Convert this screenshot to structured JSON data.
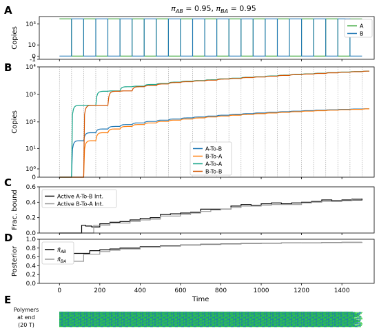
{
  "figure_title": "π_AB = 0.95, π_BA = 0.95",
  "chart_data": [
    {
      "panel_label": "A",
      "type": "line",
      "ylabel": "Copies",
      "xlim": [
        -100,
        1560
      ],
      "yscale": "symlog",
      "ylim": [
        -1,
        5000
      ],
      "y_ticks": [
        {
          "v": -1,
          "label": "-1"
        },
        {
          "v": 0,
          "label": "0"
        },
        {
          "v": 10,
          "label": "10"
        },
        {
          "v": 1000,
          "label": "10³"
        }
      ],
      "x_tick_labels_shown": false,
      "legend_position": "right",
      "series": [
        {
          "name": "A",
          "color": "#2ca02c",
          "alternating_square_wave": true,
          "start_high": true,
          "period": 60,
          "levels": [
            0,
            3000
          ]
        },
        {
          "name": "B",
          "color": "#1f77b4",
          "alternating_square_wave": true,
          "start_high": false,
          "period": 60,
          "levels": [
            0,
            3000
          ]
        }
      ]
    },
    {
      "panel_label": "B",
      "type": "line",
      "ylabel": "Copies",
      "xlim": [
        -100,
        1560
      ],
      "yscale": "symlog",
      "ylim": [
        0,
        10000
      ],
      "y_ticks": [
        {
          "v": 0,
          "label": "0"
        },
        {
          "v": 1,
          "label": "10⁰"
        },
        {
          "v": 10,
          "label": "10¹"
        },
        {
          "v": 100,
          "label": "10²"
        },
        {
          "v": 1000,
          "label": "10³"
        },
        {
          "v": 10000,
          "label": "10⁴"
        }
      ],
      "vertical_gridlines_every": 60,
      "legend_position": "lower-center",
      "series": [
        {
          "name": "A-To-B",
          "color": "#1f77b4",
          "x": [
            0,
            60,
            120,
            180,
            240,
            300,
            360,
            420,
            480,
            540,
            600,
            660,
            720,
            780,
            840,
            900,
            960,
            1020,
            1080,
            1140,
            1200,
            1260,
            1320,
            1380,
            1440,
            1500
          ],
          "y": [
            0,
            20,
            40,
            55,
            68,
            80,
            92,
            104,
            116,
            128,
            140,
            152,
            164,
            176,
            188,
            200,
            212,
            224,
            236,
            248,
            258,
            268,
            278,
            288,
            296,
            300
          ]
        },
        {
          "name": "B-To-A",
          "color": "#ff7f0e",
          "x": [
            0,
            60,
            120,
            180,
            240,
            300,
            360,
            420,
            480,
            540,
            600,
            660,
            720,
            780,
            840,
            900,
            960,
            1020,
            1080,
            1140,
            1200,
            1260,
            1320,
            1380,
            1440,
            1500
          ],
          "y": [
            0,
            0,
            20,
            40,
            55,
            68,
            80,
            92,
            104,
            116,
            128,
            140,
            152,
            164,
            176,
            188,
            200,
            212,
            224,
            236,
            248,
            258,
            268,
            278,
            288,
            300
          ]
        },
        {
          "name": "A-To-A",
          "color": "#17a589",
          "x": [
            0,
            60,
            120,
            180,
            240,
            300,
            360,
            420,
            480,
            540,
            600,
            660,
            720,
            780,
            840,
            900,
            960,
            1020,
            1080,
            1140,
            1200,
            1260,
            1320,
            1380,
            1440,
            1500
          ],
          "y": [
            0,
            400,
            400,
            1300,
            1350,
            1900,
            2000,
            2300,
            2500,
            2800,
            3000,
            3200,
            3400,
            3700,
            3900,
            4200,
            4400,
            4700,
            5000,
            5300,
            5600,
            5900,
            6200,
            6500,
            6800,
            7000
          ]
        },
        {
          "name": "B-To-B",
          "color": "#d35400",
          "x": [
            0,
            60,
            120,
            180,
            240,
            300,
            360,
            420,
            480,
            540,
            600,
            660,
            720,
            780,
            840,
            900,
            960,
            1020,
            1080,
            1140,
            1200,
            1260,
            1320,
            1380,
            1440,
            1500
          ],
          "y": [
            0,
            0,
            400,
            400,
            1300,
            1350,
            1900,
            2100,
            2400,
            2700,
            2900,
            3100,
            3300,
            3600,
            3800,
            4100,
            4300,
            4600,
            4900,
            5200,
            5500,
            5800,
            6100,
            6400,
            6700,
            7000
          ]
        }
      ]
    },
    {
      "panel_label": "C",
      "type": "line",
      "ylabel": "Frac. bound",
      "xlim": [
        -100,
        1560
      ],
      "ylim": [
        0,
        0.6
      ],
      "y_ticks": [
        {
          "v": 0,
          "label": "0.0"
        },
        {
          "v": 0.2,
          "label": "0.2"
        },
        {
          "v": 0.4,
          "label": "0.4"
        },
        {
          "v": 0.6,
          "label": "0.6"
        }
      ],
      "legend_position": "upper-left",
      "series": [
        {
          "name": "Active A-To-B Int.",
          "color": "#000000",
          "x": [
            0,
            100,
            110,
            130,
            160,
            200,
            250,
            300,
            350,
            400,
            450,
            500,
            550,
            600,
            650,
            700,
            750,
            800,
            850,
            900,
            950,
            1000,
            1050,
            1100,
            1150,
            1200,
            1250,
            1300,
            1350,
            1400,
            1450,
            1500
          ],
          "y": [
            0,
            0,
            0.1,
            0.09,
            0.08,
            0.12,
            0.14,
            0.15,
            0.17,
            0.19,
            0.2,
            0.24,
            0.25,
            0.26,
            0.27,
            0.31,
            0.31,
            0.31,
            0.35,
            0.37,
            0.36,
            0.38,
            0.39,
            0.38,
            0.39,
            0.4,
            0.41,
            0.43,
            0.42,
            0.43,
            0.43,
            0.45
          ]
        },
        {
          "name": "Active B-To-A Int.",
          "color": "#999999",
          "x": [
            0,
            150,
            170,
            200,
            250,
            300,
            350,
            400,
            450,
            500,
            550,
            600,
            650,
            700,
            750,
            800,
            850,
            900,
            950,
            1000,
            1050,
            1100,
            1150,
            1200,
            1250,
            1300,
            1350,
            1400,
            1450,
            1500
          ],
          "y": [
            0,
            0,
            0.1,
            0.1,
            0.13,
            0.13,
            0.15,
            0.17,
            0.18,
            0.22,
            0.22,
            0.24,
            0.26,
            0.28,
            0.3,
            0.31,
            0.33,
            0.35,
            0.35,
            0.36,
            0.37,
            0.37,
            0.37,
            0.39,
            0.4,
            0.41,
            0.41,
            0.42,
            0.45,
            0.44
          ]
        }
      ]
    },
    {
      "panel_label": "D",
      "type": "line",
      "ylabel": "Posterior",
      "xlabel": "Time",
      "xlim": [
        -100,
        1560
      ],
      "ylim": [
        0,
        1.0
      ],
      "y_ticks": [
        {
          "v": 0,
          "label": "0.0"
        },
        {
          "v": 0.2,
          "label": "0.2"
        },
        {
          "v": 0.4,
          "label": "0.4"
        },
        {
          "v": 0.6,
          "label": "0.6"
        },
        {
          "v": 0.8,
          "label": "0.8"
        },
        {
          "v": 1.0,
          "label": "1.0"
        }
      ],
      "x_ticks": [
        0,
        200,
        400,
        600,
        800,
        1000,
        1200,
        1400
      ],
      "legend_position": "left",
      "series": [
        {
          "name": "π̄_AB",
          "color": "#000000",
          "x": [
            0,
            50,
            70,
            100,
            150,
            200,
            250,
            300,
            400,
            500,
            600,
            700,
            800,
            900,
            1000,
            1100,
            1200,
            1300,
            1400,
            1500
          ],
          "y": [
            0.5,
            0.5,
            0.68,
            0.68,
            0.74,
            0.76,
            0.78,
            0.8,
            0.83,
            0.85,
            0.87,
            0.885,
            0.895,
            0.905,
            0.91,
            0.915,
            0.92,
            0.925,
            0.93,
            0.932
          ]
        },
        {
          "name": "π̄_BA",
          "color": "#999999",
          "x": [
            0,
            100,
            120,
            150,
            200,
            250,
            300,
            400,
            500,
            600,
            700,
            800,
            900,
            1000,
            1100,
            1200,
            1300,
            1400,
            1500
          ],
          "y": [
            0.5,
            0.5,
            0.66,
            0.66,
            0.72,
            0.75,
            0.78,
            0.82,
            0.84,
            0.865,
            0.88,
            0.89,
            0.9,
            0.91,
            0.915,
            0.92,
            0.925,
            0.93,
            0.932
          ]
        }
      ]
    },
    {
      "panel_label": "E",
      "type": "heatmap",
      "row_label": "Polymers at end (20 T)",
      "row_label_lines": [
        "Polymers",
        "at end",
        "(20 T)"
      ],
      "colors": {
        "A": "#2ecc40",
        "B": "#1f77b4"
      },
      "rows": 30,
      "pattern": "diagonal interleaved stripes; right edge ragged"
    }
  ]
}
